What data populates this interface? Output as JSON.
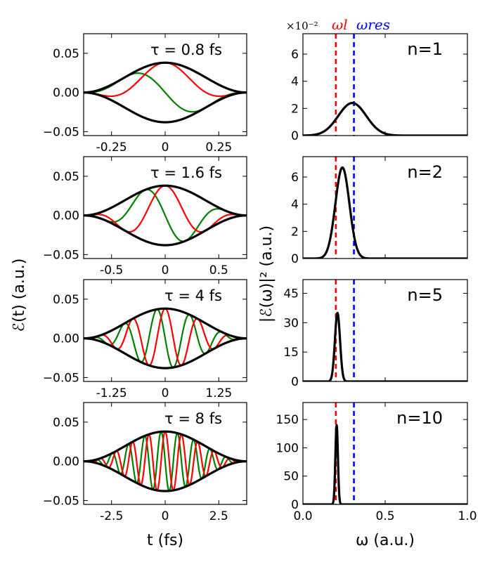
{
  "chart_data": {
    "type": "line",
    "y_axis_label_left": "ℰ(t) (a.u.)",
    "y_axis_label_right": "|ℰ(ω)|² (a.u.)",
    "x_axis_label_left": "t (fs)",
    "x_axis_label_right": "ω (a.u.)",
    "exponent_label": "×10⁻²",
    "omega_l_label": "ωl",
    "omega_res_label": "ωres",
    "omega_l": 0.2,
    "omega_res": 0.31,
    "colors": {
      "envelope": "#000000",
      "cos": "#ff0000",
      "sin": "#008000",
      "omega_l": "#ff0000",
      "omega_res": "#0000ff"
    },
    "time_panels": [
      {
        "tau_label": "τ = 0.8 fs",
        "amplitude": 0.038,
        "cycles": 1,
        "xlim": [
          -0.38,
          0.38
        ],
        "ylim": [
          -0.055,
          0.075
        ],
        "xticks": [
          -0.25,
          0,
          0.25
        ],
        "xtick_labels": [
          "-0.25",
          "0",
          "0.25"
        ],
        "yticks": [
          -0.05,
          0,
          0.05
        ],
        "ytick_labels": [
          "−0.05",
          "0.00",
          "0.05"
        ]
      },
      {
        "tau_label": "τ = 1.6 fs",
        "amplitude": 0.038,
        "cycles": 2,
        "xlim": [
          -0.76,
          0.76
        ],
        "ylim": [
          -0.055,
          0.075
        ],
        "xticks": [
          -0.5,
          0,
          0.5
        ],
        "xtick_labels": [
          "-0.5",
          "0",
          "0.5"
        ],
        "yticks": [
          -0.05,
          0,
          0.05
        ],
        "ytick_labels": [
          "−0.05",
          "0.00",
          "0.05"
        ]
      },
      {
        "tau_label": "τ = 4 fs",
        "amplitude": 0.038,
        "cycles": 5,
        "xlim": [
          -1.9,
          1.9
        ],
        "ylim": [
          -0.055,
          0.075
        ],
        "xticks": [
          -1.25,
          0,
          1.25
        ],
        "xtick_labels": [
          "-1.25",
          "0",
          "1.25"
        ],
        "yticks": [
          -0.05,
          0,
          0.05
        ],
        "ytick_labels": [
          "−0.05",
          "0.00",
          "0.05"
        ]
      },
      {
        "tau_label": "τ = 8 fs",
        "amplitude": 0.038,
        "cycles": 10,
        "xlim": [
          -3.8,
          3.8
        ],
        "ylim": [
          -0.055,
          0.075
        ],
        "xticks": [
          -2.5,
          0,
          2.5
        ],
        "xtick_labels": [
          "-2.5",
          "0",
          "2.5"
        ],
        "yticks": [
          -0.05,
          0,
          0.05
        ],
        "ytick_labels": [
          "−0.05",
          "0.00",
          "0.05"
        ]
      }
    ],
    "spectrum_panels": [
      {
        "n_label": "n=1",
        "peak": 2.4,
        "center": 0.3,
        "width": 0.12,
        "ylim": [
          0,
          7.5
        ],
        "yticks": [
          0,
          2,
          4,
          6
        ],
        "ytick_labels": [
          "0",
          "2",
          "4",
          "6"
        ]
      },
      {
        "n_label": "n=2",
        "peak": 6.7,
        "center": 0.24,
        "width": 0.06,
        "ylim": [
          0,
          7.5
        ],
        "yticks": [
          0,
          2,
          4,
          6
        ],
        "ytick_labels": [
          "0",
          "2",
          "4",
          "6"
        ]
      },
      {
        "n_label": "n=5",
        "peak": 35,
        "center": 0.21,
        "width": 0.022,
        "ylim": [
          0,
          52
        ],
        "yticks": [
          0,
          15,
          30,
          45
        ],
        "ytick_labels": [
          "0",
          "15",
          "30",
          "45"
        ]
      },
      {
        "n_label": "n=10",
        "peak": 140,
        "center": 0.205,
        "width": 0.011,
        "ylim": [
          0,
          180
        ],
        "yticks": [
          0,
          50,
          100,
          150
        ],
        "ytick_labels": [
          "0",
          "50",
          "100",
          "150"
        ]
      }
    ],
    "spectrum_xlim": [
      0,
      1
    ],
    "spectrum_xticks": [
      0,
      0.5,
      1
    ],
    "spectrum_xtick_labels": [
      "0.0",
      "0.5",
      "1.0"
    ]
  }
}
